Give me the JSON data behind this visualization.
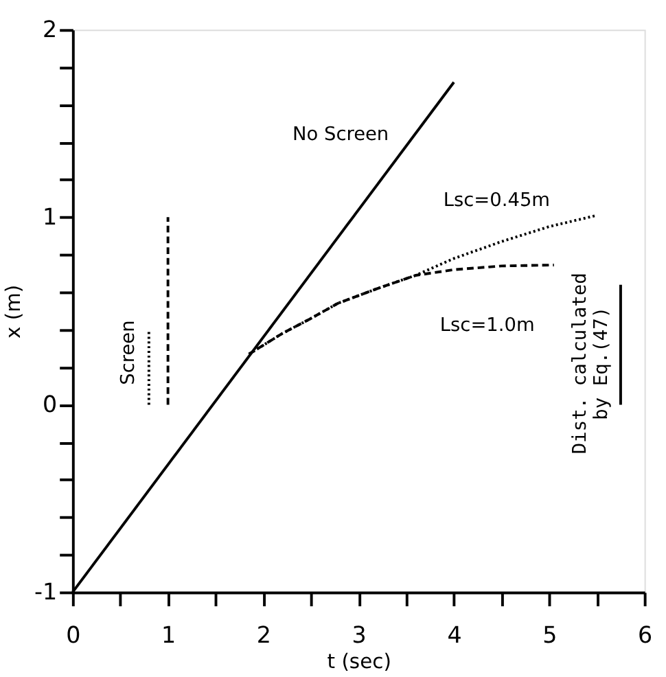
{
  "chart_data": {
    "type": "line",
    "xlabel": "t (sec)",
    "ylabel": "x (m)",
    "xlim": [
      0,
      6
    ],
    "ylim": [
      -1,
      2
    ],
    "xticks": [
      0,
      {
        "value": 0.5,
        "label": null
      },
      1,
      {
        "value": 1.5,
        "label": null
      },
      2,
      {
        "value": 2.5,
        "label": null
      },
      3,
      {
        "value": 3.5,
        "label": null
      },
      4,
      {
        "value": 4.5,
        "label": null
      },
      5,
      {
        "value": 5.5,
        "label": null
      },
      6
    ],
    "yticks": [
      -1,
      {
        "value": -0.8,
        "label": null
      },
      {
        "value": -0.6,
        "label": null
      },
      {
        "value": -0.4,
        "label": null
      },
      {
        "value": -0.2,
        "label": null
      },
      0,
      {
        "value": 0.2,
        "label": null
      },
      {
        "value": 0.4,
        "label": null
      },
      {
        "value": 0.6,
        "label": null
      },
      {
        "value": 0.8,
        "label": null
      },
      1,
      {
        "value": 1.2,
        "label": null
      },
      {
        "value": 1.4,
        "label": null
      },
      {
        "value": 1.6,
        "label": null
      },
      {
        "value": 1.8,
        "label": null
      },
      2
    ],
    "marker": "none",
    "series": [
      {
        "color": "#000000",
        "line_style": "solid",
        "x": [
          0,
          4.0
        ],
        "values": [
          -1,
          1.72
        ]
      },
      {
        "color": "#000000",
        "line_style": "dotted",
        "x": [
          1.85,
          2.2,
          2.5,
          2.78,
          3.2,
          3.6,
          4.0,
          4.5,
          5.0,
          5.5
        ],
        "values": [
          0.27,
          0.38,
          0.46,
          0.54,
          0.62,
          0.69,
          0.78,
          0.87,
          0.95,
          1.01
        ]
      },
      {
        "color": "#000000",
        "line_style": "dashed",
        "x": [
          1.85,
          2.2,
          2.5,
          2.78,
          3.2,
          3.6,
          4.0,
          4.5,
          5.05
        ],
        "values": [
          0.27,
          0.38,
          0.46,
          0.54,
          0.62,
          0.69,
          0.72,
          0.74,
          0.745
        ]
      },
      {
        "color": "#000000",
        "line_style": "dotted",
        "x": [
          0.8,
          0.8
        ],
        "values": [
          0,
          0.4
        ]
      },
      {
        "color": "#000000",
        "line_style": "dashed",
        "x": [
          1.0,
          1.0
        ],
        "values": [
          0,
          1.0
        ]
      },
      {
        "color": "#000000",
        "line_style": "solid",
        "x": [
          5.75,
          5.75
        ],
        "values": [
          0,
          0.64
        ]
      }
    ],
    "annotations": [
      {
        "text": "No Screen",
        "x": 3.43,
        "y": 1.34
      },
      {
        "text": "Lsc=0.45m",
        "x": 5.15,
        "y": 0.99
      },
      {
        "text": "Lsc=1.0m",
        "x": 3.6,
        "y": 0.68
      },
      {
        "text": "Screen",
        "x": 0.8,
        "y": 0.4
      },
      {
        "text": "Dist. calculated\nby Eq.(47)",
        "x": 5.75,
        "y": 0.22
      }
    ]
  }
}
